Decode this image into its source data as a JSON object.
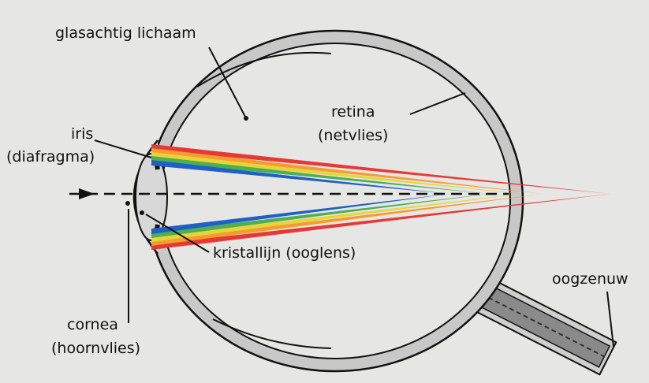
{
  "labels": [
    "glasachtig lichaam",
    "retina",
    "(netvlies)",
    "iris",
    "(diafragma)",
    "kristallijn (ooglens)",
    "oogzenuw",
    "cornea",
    "(hoornvlies)"
  ]
}
